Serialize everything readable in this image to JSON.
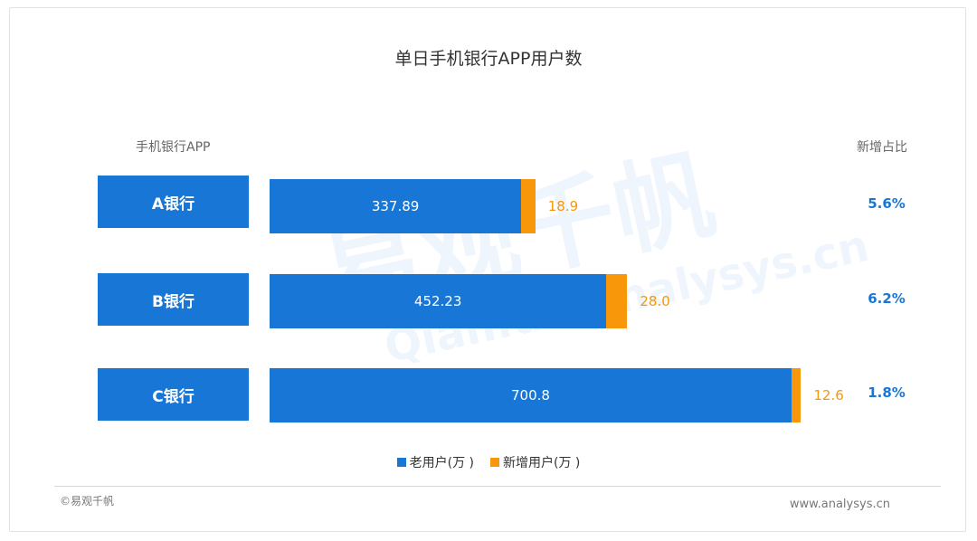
{
  "chart_data": {
    "type": "bar",
    "title": "单日手机银行APP用户数",
    "category_header": "手机银行APP",
    "share_header": "新增占比",
    "categories": [
      "A银行",
      "B银行",
      "C银行"
    ],
    "series": [
      {
        "name": "老用户(万 )",
        "values": [
          337.89,
          452.23,
          700.8
        ],
        "value_labels": [
          "337.89",
          "452.23",
          "700.8"
        ],
        "color": "#1877d6"
      },
      {
        "name": "新增用户(万 )",
        "values": [
          18.9,
          28.0,
          12.6
        ],
        "value_labels": [
          "18.9",
          "28.0",
          "12.6"
        ],
        "color": "#f79709"
      }
    ],
    "share_labels": [
      "5.6%",
      "6.2%",
      "1.8%"
    ],
    "stacked": true,
    "orientation": "horizontal",
    "legend_position": "bottom"
  },
  "watermark": {
    "cn": "易观千帆",
    "en": "Qianfan.analysys.cn"
  },
  "footer": {
    "left": "©易观千帆",
    "right": "www.analysys.cn"
  }
}
